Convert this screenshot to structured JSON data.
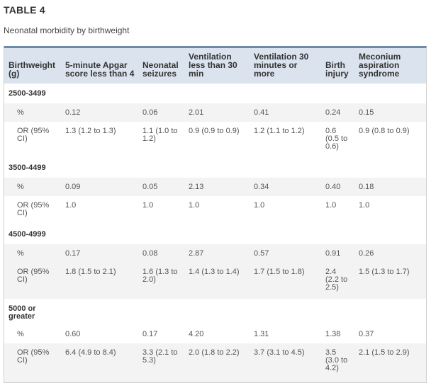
{
  "table_label": "TABLE 4",
  "caption": "Neonatal morbidity by birthweight",
  "headers": [
    "Birthweight (g)",
    "5-minute Apgar score less than 4",
    "Neonatal seizures",
    "Ventilation less than 30 min",
    "Ventilation 30 minutes or more",
    "Birth injury",
    "Meconium aspiration syndrome"
  ],
  "groups": [
    {
      "name": "2500-3499",
      "pct": {
        "label": "%",
        "values": [
          "0.12",
          "0.06",
          "2.01",
          "0.41",
          "0.24",
          "0.15"
        ]
      },
      "or": {
        "label": "OR (95% CI)",
        "values": [
          "1.3 (1.2 to 1.3)",
          "1.1 (1.0 to 1.2)",
          "0.9 (0.9 to 0.9)",
          "1.2 (1.1 to 1.2)",
          "0.6 (0.5 to 0.6)",
          "0.9 (0.8 to 0.9)"
        ]
      }
    },
    {
      "name": "3500-4499",
      "pct": {
        "label": "%",
        "values": [
          "0.09",
          "0.05",
          "2.13",
          "0.34",
          "0.40",
          "0.18"
        ]
      },
      "or": {
        "label": "OR (95% CI)",
        "values": [
          "1.0",
          "1.0",
          "1.0",
          "1.0",
          "1.0",
          "1.0"
        ]
      }
    },
    {
      "name": "4500-4999",
      "pct": {
        "label": "%",
        "values": [
          "0.17",
          "0.08",
          "2.87",
          "0.57",
          "0.91",
          "0.26"
        ]
      },
      "or": {
        "label": "OR (95% CI)",
        "values": [
          "1.8 (1.5 to 2.1)",
          "1.6 (1.3 to 2.0)",
          "1.4 (1.3 to 1.4)",
          "1.7 (1.5 to 1.8)",
          "2.4 (2.2 to 2.5)",
          "1.5 (1.3 to 1.7)"
        ]
      }
    },
    {
      "name": "5000 or greater",
      "pct": {
        "label": "%",
        "values": [
          "0.60",
          "0.17",
          "4.20",
          "1.31",
          "1.38",
          "0.37"
        ]
      },
      "or": {
        "label": "OR (95% CI)",
        "values": [
          "6.4 (4.9 to 8.4)",
          "3.3 (2.1 to 5.3)",
          "2.0 (1.8 to 2.2)",
          "3.7 (3.1 to 4.5)",
          "3.5 (3.0 to 4.2)",
          "2.1 (1.5 to 2.9)"
        ]
      }
    }
  ]
}
